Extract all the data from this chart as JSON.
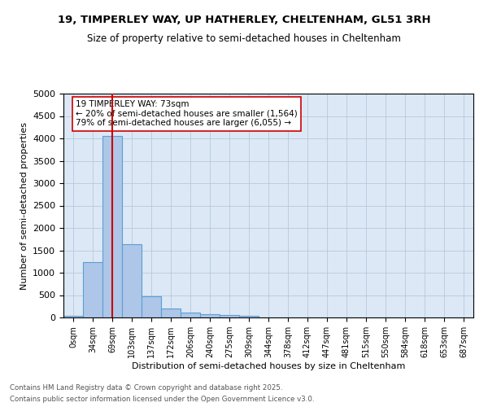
{
  "title_line1": "19, TIMPERLEY WAY, UP HATHERLEY, CHELTENHAM, GL51 3RH",
  "title_line2": "Size of property relative to semi-detached houses in Cheltenham",
  "xlabel": "Distribution of semi-detached houses by size in Cheltenham",
  "ylabel": "Number of semi-detached properties",
  "bin_labels": [
    "0sqm",
    "34sqm",
    "69sqm",
    "103sqm",
    "137sqm",
    "172sqm",
    "206sqm",
    "240sqm",
    "275sqm",
    "309sqm",
    "344sqm",
    "378sqm",
    "412sqm",
    "447sqm",
    "481sqm",
    "515sqm",
    "550sqm",
    "584sqm",
    "618sqm",
    "653sqm",
    "687sqm"
  ],
  "bar_values": [
    40,
    1240,
    4050,
    1640,
    470,
    195,
    115,
    65,
    50,
    45,
    0,
    0,
    0,
    0,
    0,
    0,
    0,
    0,
    0,
    0,
    0
  ],
  "bar_color": "#aec6e8",
  "bar_edge_color": "#5a9fd4",
  "vline_x": 2,
  "vline_color": "#cc0000",
  "annotation_title": "19 TIMPERLEY WAY: 73sqm",
  "annotation_line1": "← 20% of semi-detached houses are smaller (1,564)",
  "annotation_line2": "79% of semi-detached houses are larger (6,055) →",
  "annotation_box_color": "#ffffff",
  "annotation_box_edge": "#cc0000",
  "ylim": [
    0,
    5000
  ],
  "yticks": [
    0,
    500,
    1000,
    1500,
    2000,
    2500,
    3000,
    3500,
    4000,
    4500,
    5000
  ],
  "background_color": "#dce8f5",
  "footer_line1": "Contains HM Land Registry data © Crown copyright and database right 2025.",
  "footer_line2": "Contains public sector information licensed under the Open Government Licence v3.0."
}
